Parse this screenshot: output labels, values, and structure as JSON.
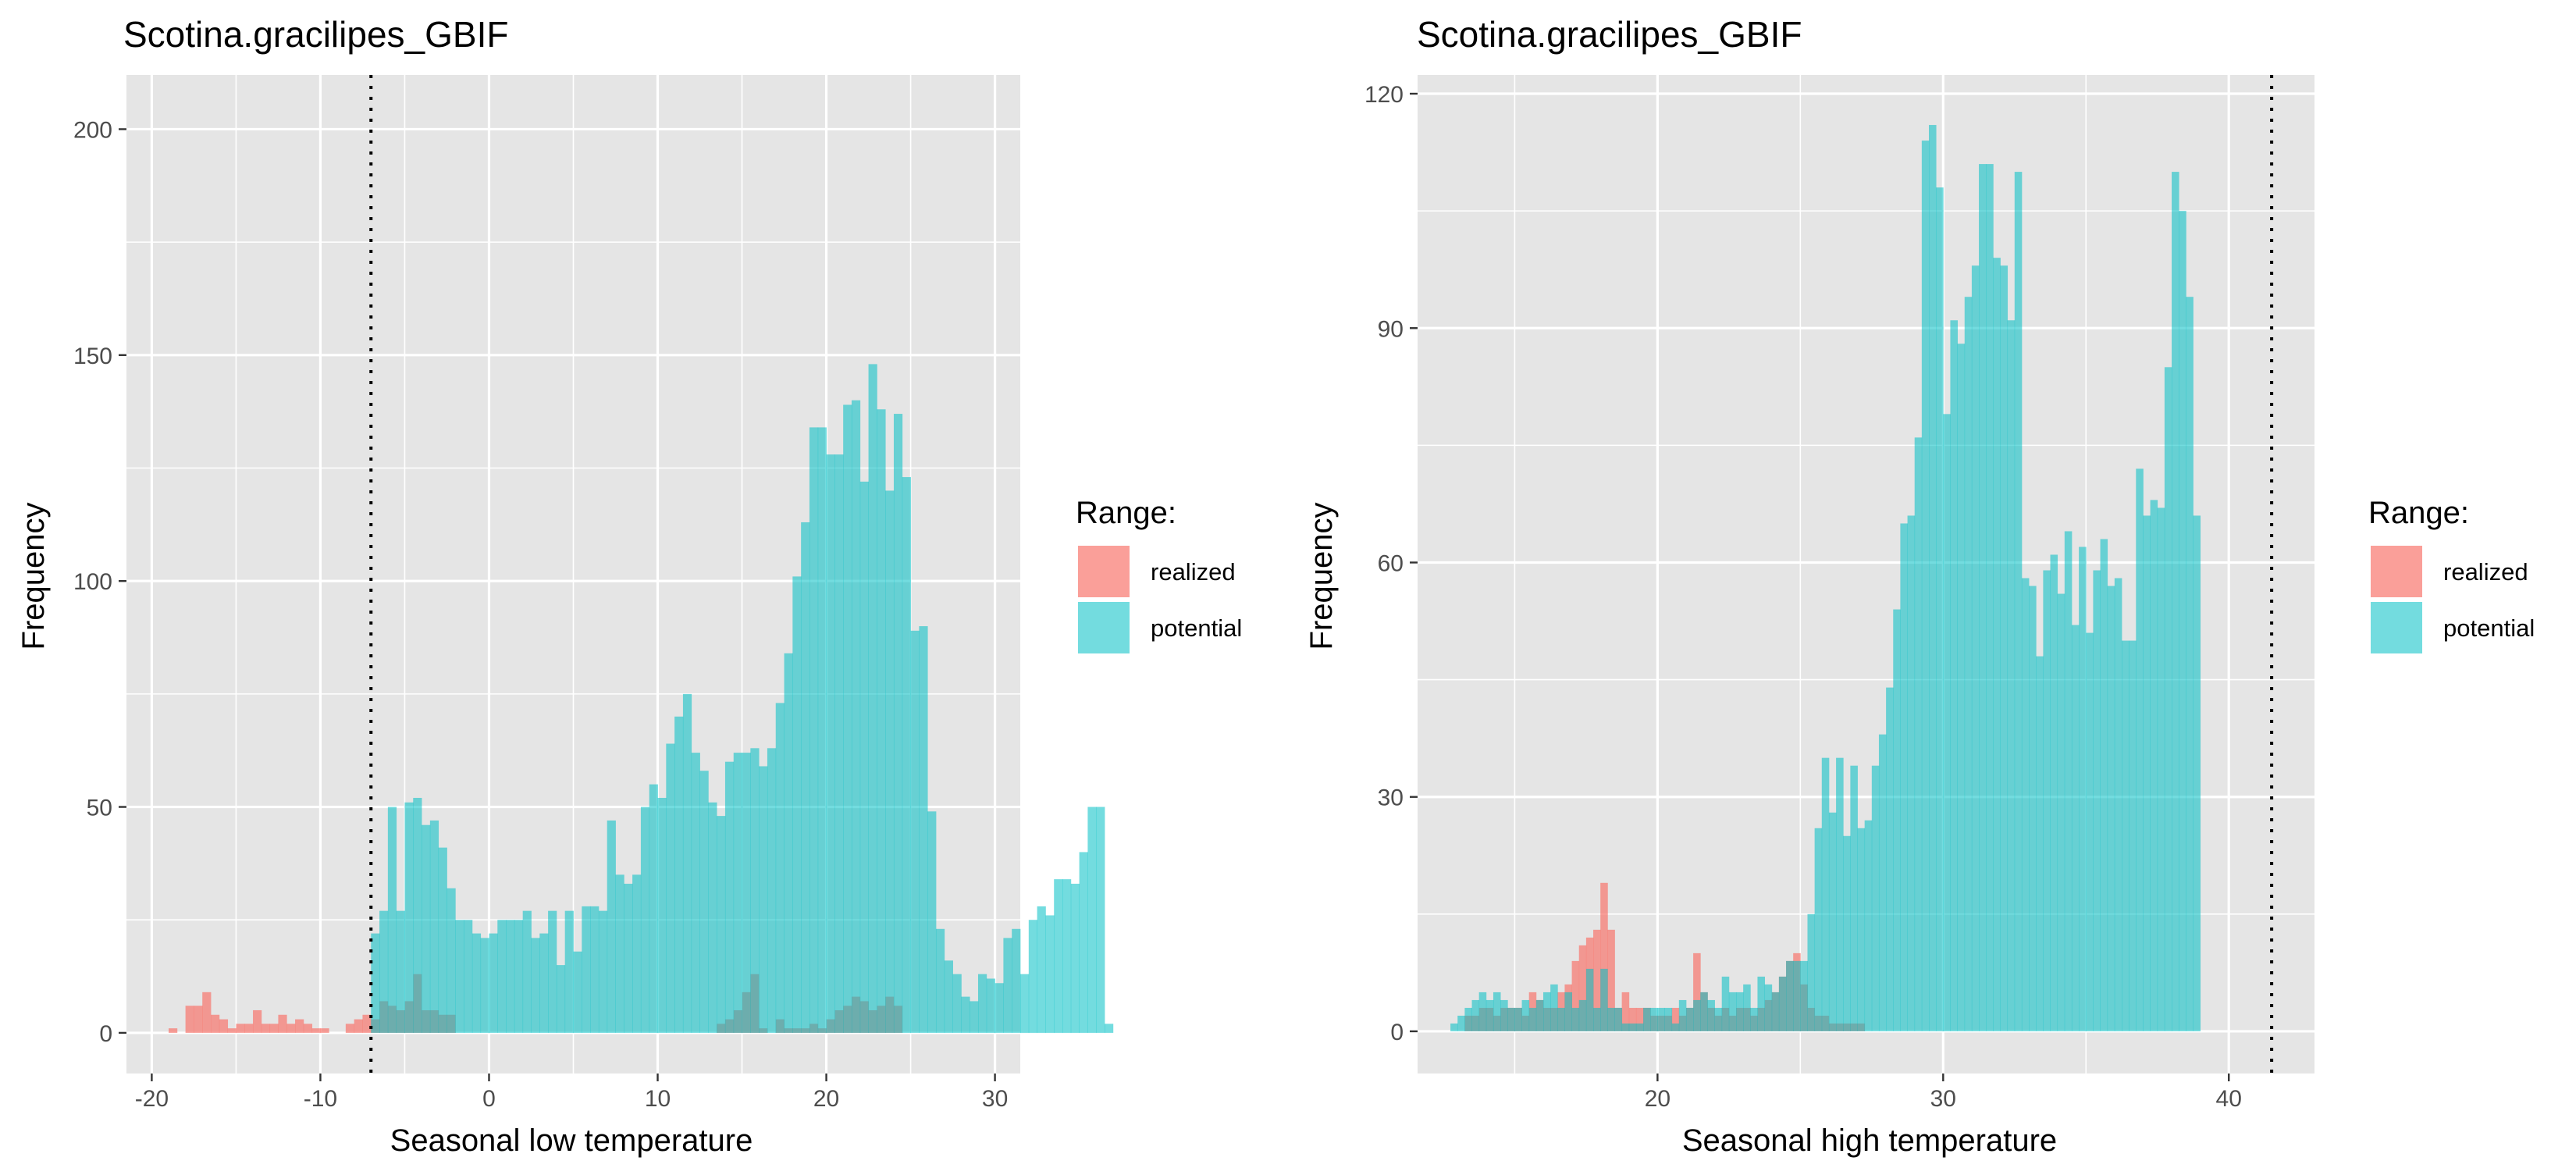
{
  "colors": {
    "realized": "#F8766D",
    "potential": "#00BFC4",
    "panel_bg": "#E5E5E5",
    "grid": "#FFFFFF"
  },
  "chart_data": [
    {
      "type": "histogram",
      "title": "Scotina.gracilipes_GBIF",
      "xlabel": "Seasonal low temperature",
      "ylabel": "Frequency",
      "xlim": [
        -21.5,
        31.5
      ],
      "ylim": [
        -9,
        212
      ],
      "xticks": [
        -20,
        -10,
        0,
        10,
        20,
        30
      ],
      "xtick_labels": [
        "-20",
        "-10",
        "0",
        "10",
        "20",
        "30"
      ],
      "yticks": [
        0,
        50,
        100,
        150,
        200
      ],
      "ytick_labels": [
        "0",
        "50",
        "100",
        "150",
        "200"
      ],
      "grid": true,
      "bin_width": 0.5,
      "threshold_line": -7,
      "legend": {
        "title": "Range:",
        "position": "right",
        "entries": [
          "realized",
          "potential"
        ]
      },
      "series": [
        {
          "name": "realized",
          "x_start": -19.0,
          "values": [
            1,
            0,
            6,
            6,
            9,
            4,
            3,
            1,
            2,
            2,
            5,
            2,
            2,
            4,
            2,
            3,
            2,
            1,
            1,
            0,
            0,
            2,
            3,
            4,
            3,
            7,
            6,
            5,
            7,
            13,
            5,
            5,
            4,
            4,
            0,
            0,
            0,
            0,
            0,
            0,
            0,
            0,
            0,
            0,
            0,
            0,
            0,
            0,
            0,
            0,
            0,
            0,
            0,
            0,
            0,
            0,
            0,
            0,
            0,
            0,
            0,
            0,
            0,
            0,
            0,
            2,
            3,
            5,
            9,
            13,
            1,
            0,
            3,
            1,
            1,
            1,
            2,
            1,
            3,
            5,
            6,
            8,
            7,
            5,
            6,
            8,
            6
          ]
        },
        {
          "name": "potential",
          "x_start": -7.0,
          "values": [
            22,
            27,
            50,
            27,
            51,
            52,
            46,
            47,
            41,
            32,
            25,
            25,
            22,
            21,
            22,
            25,
            25,
            25,
            27,
            21,
            22,
            27,
            15,
            27,
            18,
            28,
            28,
            27,
            47,
            35,
            33,
            35,
            50,
            55,
            52,
            64,
            70,
            75,
            62,
            58,
            51,
            48,
            60,
            62,
            62,
            63,
            59,
            63,
            73,
            84,
            101,
            113,
            134,
            134,
            128,
            128,
            139,
            140,
            122,
            148,
            138,
            120,
            137,
            123,
            89,
            90,
            49,
            23,
            16,
            13,
            8,
            7,
            13,
            12,
            11,
            21,
            23,
            13,
            25,
            28,
            26,
            34,
            34,
            33,
            40,
            50,
            50,
            2
          ]
        }
      ]
    },
    {
      "type": "histogram",
      "title": "Scotina.gracilipes_GBIF",
      "xlabel": "Seasonal high temperature",
      "ylabel": "Frequency",
      "xlim": [
        11.6,
        43.0
      ],
      "ylim": [
        -5.4,
        122.4
      ],
      "xticks": [
        20,
        30,
        40
      ],
      "xtick_labels": [
        "20",
        "30",
        "40"
      ],
      "yticks": [
        0,
        30,
        60,
        90,
        120
      ],
      "ytick_labels": [
        "0",
        "30",
        "60",
        "90",
        "120"
      ],
      "grid": true,
      "bin_width": 0.25,
      "threshold_line": 41.5,
      "legend": {
        "title": "Range:",
        "position": "right",
        "entries": [
          "realized",
          "potential"
        ]
      },
      "series": [
        {
          "name": "realized",
          "x_start": 13.25,
          "values": [
            2,
            2,
            3,
            3,
            2,
            3,
            3,
            3,
            2,
            5,
            4,
            3,
            3,
            5,
            6,
            9,
            11,
            12,
            13,
            19,
            13,
            3,
            5,
            3,
            3,
            3,
            2,
            2,
            2,
            3,
            2,
            3,
            10,
            5,
            3,
            2,
            3,
            2,
            3,
            3,
            2,
            3,
            4,
            5,
            7,
            9,
            10,
            6,
            3,
            2,
            2,
            1,
            1,
            1,
            1,
            1
          ]
        },
        {
          "name": "potential",
          "x_start": 12.75,
          "values": [
            1,
            2,
            3,
            4,
            5,
            4,
            5,
            4,
            3,
            3,
            4,
            3,
            4,
            5,
            6,
            3,
            5,
            3,
            4,
            8,
            3,
            8,
            3,
            3,
            1,
            1,
            1,
            3,
            3,
            3,
            3,
            1,
            4,
            3,
            4,
            5,
            4,
            3,
            7,
            5,
            5,
            6,
            3,
            7,
            6,
            5,
            7,
            9,
            9,
            9,
            15,
            26,
            35,
            28,
            35,
            25,
            34,
            26,
            27,
            34,
            38,
            44,
            54,
            65,
            66,
            76,
            114,
            116,
            108,
            79,
            91,
            88,
            94,
            98,
            111,
            111,
            99,
            98,
            91,
            110,
            58,
            57,
            48,
            59,
            61,
            56,
            64,
            52,
            62,
            51,
            59,
            63,
            57,
            58,
            50,
            50,
            72,
            66,
            68,
            67,
            85,
            110,
            105,
            94,
            66
          ]
        }
      ]
    }
  ]
}
